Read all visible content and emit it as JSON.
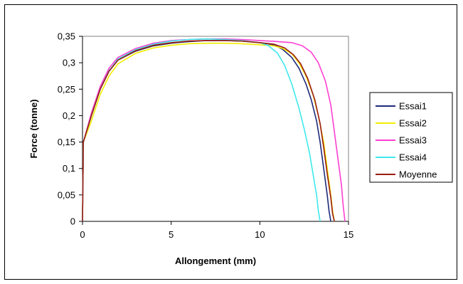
{
  "chart_data": {
    "type": "line",
    "title": "",
    "xlabel": "Allongement (mm)",
    "ylabel": "Force (tonne)",
    "xlim": [
      0,
      15
    ],
    "ylim": [
      0,
      0.35
    ],
    "x_ticks": [
      "0",
      "5",
      "10",
      "15"
    ],
    "x_tick_values": [
      0,
      5,
      10,
      15
    ],
    "y_ticks": [
      "0",
      "0,05",
      "0,1",
      "0,15",
      "0,2",
      "0,25",
      "0,3",
      "0,35"
    ],
    "y_tick_values": [
      0,
      0.05,
      0.1,
      0.15,
      0.2,
      0.25,
      0.3,
      0.35
    ],
    "grid": false,
    "legend_position": "right",
    "series": [
      {
        "name": "Essai1",
        "color": "#1f2a7a",
        "points": [
          [
            0,
            0
          ],
          [
            0.05,
            0.15
          ],
          [
            0.5,
            0.2
          ],
          [
            1,
            0.25
          ],
          [
            1.5,
            0.285
          ],
          [
            2,
            0.305
          ],
          [
            3,
            0.322
          ],
          [
            4,
            0.332
          ],
          [
            5,
            0.337
          ],
          [
            6,
            0.34
          ],
          [
            7,
            0.342
          ],
          [
            8,
            0.342
          ],
          [
            9,
            0.341
          ],
          [
            10,
            0.338
          ],
          [
            10.8,
            0.334
          ],
          [
            11.3,
            0.325
          ],
          [
            11.8,
            0.31
          ],
          [
            12.2,
            0.29
          ],
          [
            12.6,
            0.26
          ],
          [
            12.9,
            0.23
          ],
          [
            13.2,
            0.19
          ],
          [
            13.4,
            0.15
          ],
          [
            13.6,
            0.1
          ],
          [
            13.8,
            0.05
          ],
          [
            13.9,
            0.02
          ],
          [
            14.0,
            0
          ]
        ]
      },
      {
        "name": "Essai2",
        "color": "#f2ee00",
        "points": [
          [
            0,
            0
          ],
          [
            0.05,
            0.15
          ],
          [
            0.5,
            0.19
          ],
          [
            1,
            0.24
          ],
          [
            1.5,
            0.275
          ],
          [
            2,
            0.298
          ],
          [
            3,
            0.318
          ],
          [
            4,
            0.328
          ],
          [
            5,
            0.333
          ],
          [
            6,
            0.336
          ],
          [
            7,
            0.337
          ],
          [
            8,
            0.337
          ],
          [
            9,
            0.336
          ],
          [
            10,
            0.334
          ],
          [
            10.8,
            0.332
          ],
          [
            11.3,
            0.327
          ],
          [
            11.8,
            0.317
          ],
          [
            12.2,
            0.3
          ],
          [
            12.6,
            0.275
          ],
          [
            13.0,
            0.24
          ],
          [
            13.3,
            0.2
          ],
          [
            13.6,
            0.15
          ],
          [
            13.8,
            0.1
          ],
          [
            14.0,
            0.05
          ],
          [
            14.1,
            0.02
          ],
          [
            14.2,
            0
          ]
        ]
      },
      {
        "name": "Essai3",
        "color": "#ff3fd2",
        "points": [
          [
            0,
            0
          ],
          [
            0.05,
            0.15
          ],
          [
            0.5,
            0.205
          ],
          [
            1,
            0.255
          ],
          [
            1.5,
            0.29
          ],
          [
            2,
            0.31
          ],
          [
            3,
            0.327
          ],
          [
            4,
            0.337
          ],
          [
            5,
            0.342
          ],
          [
            6,
            0.344
          ],
          [
            7,
            0.345
          ],
          [
            8,
            0.345
          ],
          [
            9,
            0.344
          ],
          [
            10,
            0.342
          ],
          [
            11,
            0.34
          ],
          [
            11.8,
            0.338
          ],
          [
            12.4,
            0.332
          ],
          [
            12.9,
            0.32
          ],
          [
            13.3,
            0.3
          ],
          [
            13.7,
            0.265
          ],
          [
            14.0,
            0.22
          ],
          [
            14.2,
            0.17
          ],
          [
            14.4,
            0.12
          ],
          [
            14.6,
            0.07
          ],
          [
            14.7,
            0.03
          ],
          [
            14.8,
            0
          ]
        ]
      },
      {
        "name": "Essai4",
        "color": "#3ee8ee",
        "points": [
          [
            0,
            0
          ],
          [
            0.05,
            0.15
          ],
          [
            0.5,
            0.2
          ],
          [
            1,
            0.25
          ],
          [
            1.5,
            0.285
          ],
          [
            2,
            0.307
          ],
          [
            3,
            0.325
          ],
          [
            4,
            0.335
          ],
          [
            5,
            0.341
          ],
          [
            6,
            0.344
          ],
          [
            7,
            0.345
          ],
          [
            8,
            0.344
          ],
          [
            9,
            0.342
          ],
          [
            10,
            0.338
          ],
          [
            10.5,
            0.332
          ],
          [
            11,
            0.318
          ],
          [
            11.4,
            0.295
          ],
          [
            11.8,
            0.26
          ],
          [
            12.2,
            0.215
          ],
          [
            12.5,
            0.175
          ],
          [
            12.8,
            0.13
          ],
          [
            13.0,
            0.09
          ],
          [
            13.2,
            0.05
          ],
          [
            13.3,
            0.02
          ],
          [
            13.4,
            0
          ]
        ]
      },
      {
        "name": "Moyenne",
        "color": "#9a1c10",
        "points": [
          [
            0,
            0
          ],
          [
            0.05,
            0.15
          ],
          [
            0.5,
            0.2
          ],
          [
            1,
            0.25
          ],
          [
            1.5,
            0.284
          ],
          [
            2,
            0.305
          ],
          [
            3,
            0.323
          ],
          [
            4,
            0.333
          ],
          [
            5,
            0.338
          ],
          [
            6,
            0.341
          ],
          [
            7,
            0.342
          ],
          [
            8,
            0.342
          ],
          [
            9,
            0.341
          ],
          [
            10,
            0.338
          ],
          [
            10.8,
            0.335
          ],
          [
            11.4,
            0.328
          ],
          [
            11.9,
            0.315
          ],
          [
            12.3,
            0.298
          ],
          [
            12.7,
            0.27
          ],
          [
            13.1,
            0.23
          ],
          [
            13.4,
            0.185
          ],
          [
            13.6,
            0.14
          ],
          [
            13.8,
            0.09
          ],
          [
            14.0,
            0.045
          ],
          [
            14.1,
            0.015
          ],
          [
            14.2,
            0
          ]
        ]
      }
    ]
  }
}
